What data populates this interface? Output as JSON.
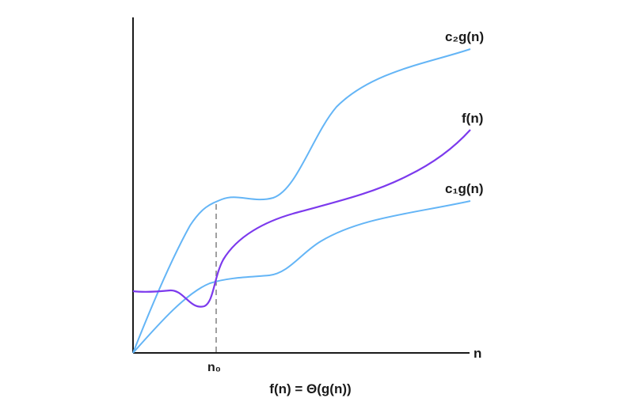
{
  "labels": {
    "c2g": "c₂g(n)",
    "fn": "f(n)",
    "c1g": "c₁g(n)",
    "n_axis": "n",
    "n0": "n₀",
    "caption": "f(n) = Θ(g(n))"
  },
  "colors": {
    "c2g": "#64b5f6",
    "c1g": "#64b5f6",
    "fn": "#7c3aed",
    "axis": "#1a1a1a",
    "guide": "#888888"
  }
}
